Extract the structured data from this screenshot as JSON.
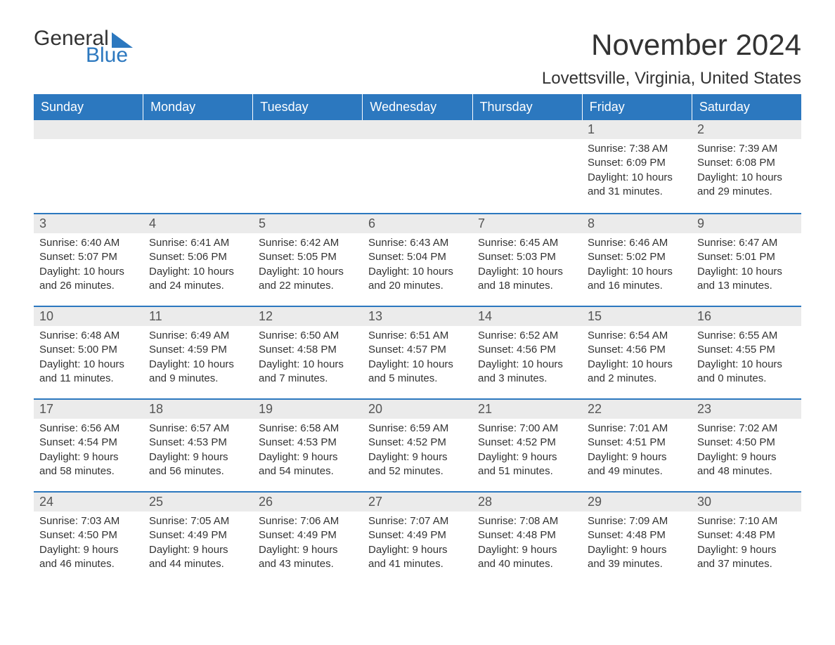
{
  "logo": {
    "general": "General",
    "blue": "Blue"
  },
  "title": "November 2024",
  "location": "Lovettsville, Virginia, United States",
  "header_bg": "#2c78bf",
  "header_fg": "#ffffff",
  "daynum_bg": "#ebebeb",
  "border_color": "#2c78bf",
  "text_color": "#333333",
  "weekdays": [
    "Sunday",
    "Monday",
    "Tuesday",
    "Wednesday",
    "Thursday",
    "Friday",
    "Saturday"
  ],
  "weeks": [
    [
      null,
      null,
      null,
      null,
      null,
      {
        "n": "1",
        "sunrise": "Sunrise: 7:38 AM",
        "sunset": "Sunset: 6:09 PM",
        "d1": "Daylight: 10 hours",
        "d2": "and 31 minutes."
      },
      {
        "n": "2",
        "sunrise": "Sunrise: 7:39 AM",
        "sunset": "Sunset: 6:08 PM",
        "d1": "Daylight: 10 hours",
        "d2": "and 29 minutes."
      }
    ],
    [
      {
        "n": "3",
        "sunrise": "Sunrise: 6:40 AM",
        "sunset": "Sunset: 5:07 PM",
        "d1": "Daylight: 10 hours",
        "d2": "and 26 minutes."
      },
      {
        "n": "4",
        "sunrise": "Sunrise: 6:41 AM",
        "sunset": "Sunset: 5:06 PM",
        "d1": "Daylight: 10 hours",
        "d2": "and 24 minutes."
      },
      {
        "n": "5",
        "sunrise": "Sunrise: 6:42 AM",
        "sunset": "Sunset: 5:05 PM",
        "d1": "Daylight: 10 hours",
        "d2": "and 22 minutes."
      },
      {
        "n": "6",
        "sunrise": "Sunrise: 6:43 AM",
        "sunset": "Sunset: 5:04 PM",
        "d1": "Daylight: 10 hours",
        "d2": "and 20 minutes."
      },
      {
        "n": "7",
        "sunrise": "Sunrise: 6:45 AM",
        "sunset": "Sunset: 5:03 PM",
        "d1": "Daylight: 10 hours",
        "d2": "and 18 minutes."
      },
      {
        "n": "8",
        "sunrise": "Sunrise: 6:46 AM",
        "sunset": "Sunset: 5:02 PM",
        "d1": "Daylight: 10 hours",
        "d2": "and 16 minutes."
      },
      {
        "n": "9",
        "sunrise": "Sunrise: 6:47 AM",
        "sunset": "Sunset: 5:01 PM",
        "d1": "Daylight: 10 hours",
        "d2": "and 13 minutes."
      }
    ],
    [
      {
        "n": "10",
        "sunrise": "Sunrise: 6:48 AM",
        "sunset": "Sunset: 5:00 PM",
        "d1": "Daylight: 10 hours",
        "d2": "and 11 minutes."
      },
      {
        "n": "11",
        "sunrise": "Sunrise: 6:49 AM",
        "sunset": "Sunset: 4:59 PM",
        "d1": "Daylight: 10 hours",
        "d2": "and 9 minutes."
      },
      {
        "n": "12",
        "sunrise": "Sunrise: 6:50 AM",
        "sunset": "Sunset: 4:58 PM",
        "d1": "Daylight: 10 hours",
        "d2": "and 7 minutes."
      },
      {
        "n": "13",
        "sunrise": "Sunrise: 6:51 AM",
        "sunset": "Sunset: 4:57 PM",
        "d1": "Daylight: 10 hours",
        "d2": "and 5 minutes."
      },
      {
        "n": "14",
        "sunrise": "Sunrise: 6:52 AM",
        "sunset": "Sunset: 4:56 PM",
        "d1": "Daylight: 10 hours",
        "d2": "and 3 minutes."
      },
      {
        "n": "15",
        "sunrise": "Sunrise: 6:54 AM",
        "sunset": "Sunset: 4:56 PM",
        "d1": "Daylight: 10 hours",
        "d2": "and 2 minutes."
      },
      {
        "n": "16",
        "sunrise": "Sunrise: 6:55 AM",
        "sunset": "Sunset: 4:55 PM",
        "d1": "Daylight: 10 hours",
        "d2": "and 0 minutes."
      }
    ],
    [
      {
        "n": "17",
        "sunrise": "Sunrise: 6:56 AM",
        "sunset": "Sunset: 4:54 PM",
        "d1": "Daylight: 9 hours",
        "d2": "and 58 minutes."
      },
      {
        "n": "18",
        "sunrise": "Sunrise: 6:57 AM",
        "sunset": "Sunset: 4:53 PM",
        "d1": "Daylight: 9 hours",
        "d2": "and 56 minutes."
      },
      {
        "n": "19",
        "sunrise": "Sunrise: 6:58 AM",
        "sunset": "Sunset: 4:53 PM",
        "d1": "Daylight: 9 hours",
        "d2": "and 54 minutes."
      },
      {
        "n": "20",
        "sunrise": "Sunrise: 6:59 AM",
        "sunset": "Sunset: 4:52 PM",
        "d1": "Daylight: 9 hours",
        "d2": "and 52 minutes."
      },
      {
        "n": "21",
        "sunrise": "Sunrise: 7:00 AM",
        "sunset": "Sunset: 4:52 PM",
        "d1": "Daylight: 9 hours",
        "d2": "and 51 minutes."
      },
      {
        "n": "22",
        "sunrise": "Sunrise: 7:01 AM",
        "sunset": "Sunset: 4:51 PM",
        "d1": "Daylight: 9 hours",
        "d2": "and 49 minutes."
      },
      {
        "n": "23",
        "sunrise": "Sunrise: 7:02 AM",
        "sunset": "Sunset: 4:50 PM",
        "d1": "Daylight: 9 hours",
        "d2": "and 48 minutes."
      }
    ],
    [
      {
        "n": "24",
        "sunrise": "Sunrise: 7:03 AM",
        "sunset": "Sunset: 4:50 PM",
        "d1": "Daylight: 9 hours",
        "d2": "and 46 minutes."
      },
      {
        "n": "25",
        "sunrise": "Sunrise: 7:05 AM",
        "sunset": "Sunset: 4:49 PM",
        "d1": "Daylight: 9 hours",
        "d2": "and 44 minutes."
      },
      {
        "n": "26",
        "sunrise": "Sunrise: 7:06 AM",
        "sunset": "Sunset: 4:49 PM",
        "d1": "Daylight: 9 hours",
        "d2": "and 43 minutes."
      },
      {
        "n": "27",
        "sunrise": "Sunrise: 7:07 AM",
        "sunset": "Sunset: 4:49 PM",
        "d1": "Daylight: 9 hours",
        "d2": "and 41 minutes."
      },
      {
        "n": "28",
        "sunrise": "Sunrise: 7:08 AM",
        "sunset": "Sunset: 4:48 PM",
        "d1": "Daylight: 9 hours",
        "d2": "and 40 minutes."
      },
      {
        "n": "29",
        "sunrise": "Sunrise: 7:09 AM",
        "sunset": "Sunset: 4:48 PM",
        "d1": "Daylight: 9 hours",
        "d2": "and 39 minutes."
      },
      {
        "n": "30",
        "sunrise": "Sunrise: 7:10 AM",
        "sunset": "Sunset: 4:48 PM",
        "d1": "Daylight: 9 hours",
        "d2": "and 37 minutes."
      }
    ]
  ]
}
